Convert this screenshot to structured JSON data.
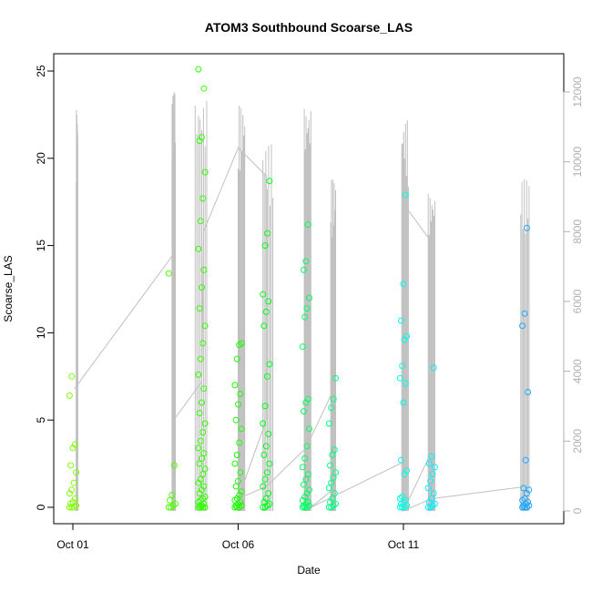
{
  "chart_data": {
    "type": "scatter",
    "title": "ATOM3 Southbound Scoarse_LAS",
    "xlabel": "Date",
    "ylabel": "Scoarse_LAS",
    "x_ticks": [
      "Oct 01",
      "Oct 06",
      "Oct 11"
    ],
    "y_ticks": [
      "0",
      "5",
      "10",
      "15",
      "20",
      "25"
    ],
    "y2_ticks": [
      "0",
      "2000",
      "4000",
      "6000",
      "8000",
      "10000",
      "12000"
    ],
    "xlim": [
      0,
      14.3
    ],
    "ylim": [
      0,
      25
    ],
    "y2lim": [
      0,
      12000
    ],
    "colors": {
      "axis": "#000000",
      "secondary_axis": "#b0b0b0",
      "secondary_series": "#c0c0c0",
      "point_start": "#80ff00",
      "point_mid": "#00ff80",
      "point_end": "#0080ff"
    },
    "points_by_day": [
      {
        "x": 0.0,
        "color": "#7fff00",
        "values": [
          0,
          0,
          0,
          0.1,
          0.2,
          0.3,
          0.5,
          0.8,
          1.0,
          1.4,
          2.0,
          2.4,
          3.4,
          3.6,
          6.4,
          7.5
        ]
      },
      {
        "x": 3.0,
        "color": "#4dff00",
        "values": [
          0,
          0,
          0.1,
          0.2,
          0.4,
          0.7,
          2.4,
          13.4
        ]
      },
      {
        "x": 3.9,
        "color": "#33ff00",
        "values": [
          0,
          0,
          0,
          0,
          0.1,
          0.1,
          0.2,
          0.3,
          0.4,
          0.5,
          0.6,
          0.8,
          1.0,
          1.2,
          1.4,
          1.6,
          1.9,
          2.2,
          2.5,
          2.8,
          3.1,
          3.4,
          3.8,
          4.3,
          4.8,
          5.4,
          6.0,
          6.8,
          7.6,
          8.5,
          9.4,
          10.4,
          11.4,
          12.6,
          13.6,
          14.8,
          16.4,
          17.7,
          19.2,
          21.0,
          21.2,
          24.0,
          25.1
        ]
      },
      {
        "x": 5.0,
        "color": "#1aff00",
        "values": [
          0,
          0,
          0,
          0.1,
          0.1,
          0.2,
          0.3,
          0.4,
          0.5,
          0.7,
          0.9,
          1.2,
          1.5,
          2.0,
          2.5,
          3.0,
          3.7,
          4.5,
          5.0,
          5.9,
          6.5,
          7.0,
          8.5,
          9.3,
          9.4
        ]
      },
      {
        "x": 5.85,
        "color": "#00ff1a",
        "values": [
          0,
          0,
          0.1,
          0.2,
          0.3,
          0.5,
          0.8,
          1.2,
          1.6,
          2.0,
          2.5,
          3.0,
          3.5,
          4.2,
          4.8,
          5.8,
          7.5,
          8.2,
          10.4,
          11.2,
          11.8,
          12.2,
          15.0,
          15.7,
          18.7
        ]
      },
      {
        "x": 7.05,
        "color": "#00ff60",
        "values": [
          0,
          0,
          0,
          0.1,
          0.1,
          0.2,
          0.3,
          0.4,
          0.6,
          0.8,
          1.0,
          1.3,
          1.6,
          1.9,
          2.3,
          2.8,
          3.5,
          4.5,
          5.5,
          6.0,
          6.2,
          9.2,
          10.9,
          11.4,
          12.0,
          13.6,
          14.1,
          16.2
        ]
      },
      {
        "x": 7.85,
        "color": "#00ff80",
        "values": [
          0,
          0,
          0.1,
          0.2,
          0.3,
          0.5,
          0.8,
          1.1,
          1.4,
          1.7,
          2.0,
          2.4,
          3.0,
          3.3,
          4.8,
          5.7,
          6.2,
          7.4
        ]
      },
      {
        "x": 10.0,
        "color": "#00ffe6",
        "values": [
          0,
          0,
          0,
          0.1,
          0.2,
          0.3,
          0.4,
          0.5,
          0.6,
          1.9,
          2.1,
          2.7,
          6.0,
          7.1,
          7.4,
          8.1,
          9.6,
          9.8,
          10.7,
          12.8,
          17.9
        ]
      },
      {
        "x": 10.85,
        "color": "#00f0ff",
        "values": [
          0,
          0,
          0.1,
          0.2,
          0.3,
          0.5,
          0.8,
          1.1,
          1.5,
          1.9,
          2.3,
          2.5,
          2.9,
          8.0
        ]
      },
      {
        "x": 13.7,
        "color": "#1ea8ff",
        "values": [
          0,
          0,
          0,
          0.1,
          0.1,
          0.2,
          0.3,
          0.4,
          0.5,
          0.8,
          1.0,
          1.1,
          2.7,
          6.6,
          10.4,
          11.1,
          16.0
        ]
      }
    ],
    "secondary_series": {
      "name": "",
      "spikes": [
        {
          "x_start": 0.1,
          "x_end": 0.15,
          "peak": 11500
        },
        {
          "x_start": 3.0,
          "x_end": 3.1,
          "peak": 12000
        },
        {
          "x_start": 3.7,
          "x_end": 4.05,
          "peak": 11800
        },
        {
          "x_start": 5.0,
          "x_end": 5.2,
          "peak": 11600
        },
        {
          "x_start": 5.75,
          "x_end": 6.05,
          "peak": 10500
        },
        {
          "x_start": 7.0,
          "x_end": 7.2,
          "peak": 11600
        },
        {
          "x_start": 7.8,
          "x_end": 7.95,
          "peak": 9500
        },
        {
          "x_start": 9.95,
          "x_end": 10.15,
          "peak": 11200
        },
        {
          "x_start": 10.75,
          "x_end": 10.95,
          "peak": 9100
        },
        {
          "x_start": 13.55,
          "x_end": 13.8,
          "peak": 9500
        }
      ],
      "path": [
        [
          0.05,
          3500
        ],
        [
          3.0,
          7300
        ],
        [
          3.05,
          2600
        ],
        [
          3.9,
          3700
        ],
        [
          3.95,
          8000
        ],
        [
          5.0,
          10400
        ],
        [
          5.85,
          9600
        ],
        [
          5.85,
          2600
        ],
        [
          5.0,
          350
        ],
        [
          5.85,
          700
        ],
        [
          7.05,
          1800
        ],
        [
          7.85,
          3400
        ],
        [
          7.85,
          600
        ],
        [
          7.2,
          100
        ],
        [
          10.0,
          1400
        ],
        [
          10.0,
          8800
        ],
        [
          10.85,
          7700
        ],
        [
          10.85,
          1700
        ],
        [
          10.0,
          0
        ],
        [
          10.85,
          350
        ],
        [
          13.7,
          700
        ]
      ]
    }
  }
}
